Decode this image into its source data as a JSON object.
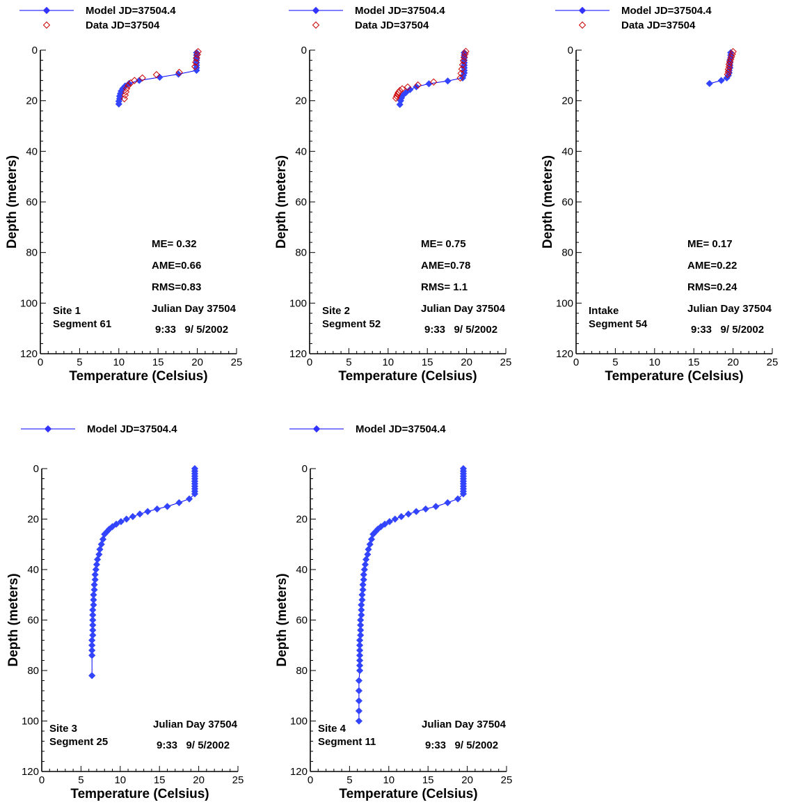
{
  "chart_data": [
    {
      "type": "scatter",
      "xlabel": "Temperature  (Celsius)",
      "ylabel": "Depth (meters)",
      "xlim": [
        0,
        25
      ],
      "ylim": [
        0,
        120
      ],
      "y_inverted": true,
      "x_ticks": [
        "0",
        "5",
        "10",
        "15",
        "20",
        "25"
      ],
      "y_ticks": [
        "0",
        "20",
        "40",
        "60",
        "80",
        "100",
        "120"
      ],
      "legend": "top-left",
      "site_label": [
        "Site 1",
        "Segment 61"
      ],
      "stats": [
        "ME= 0.32",
        "AME=0.66",
        "RMS=0.83"
      ],
      "date_label": [
        "Julian Day 37504",
        "9:33   9/ 5/2002"
      ],
      "series": [
        {
          "name": "Model JD=37504.4",
          "marker": "filled-diamond",
          "line": true,
          "color": "#0000cc",
          "x": [
            19.9,
            19.9,
            19.9,
            19.9,
            19.9,
            19.9,
            19.9,
            19.9,
            17.6,
            15.2,
            12.6,
            11.3,
            10.8,
            10.5,
            10.3,
            10.2,
            10.1,
            10.1,
            10.0,
            10.0
          ],
          "y": [
            1,
            2,
            3,
            4,
            5,
            6,
            7,
            8,
            9.5,
            10.7,
            12,
            13.2,
            14.2,
            15.2,
            16.2,
            17.2,
            18.2,
            19.2,
            20.2,
            21.3
          ]
        },
        {
          "name": "Data JD=37504",
          "marker": "open-diamond",
          "line": false,
          "color": "#cc0000",
          "x": [
            20.1,
            20.0,
            19.9,
            19.8,
            19.7,
            17.7,
            14.8,
            13.0,
            12.0,
            11.5,
            11.2,
            11.0,
            10.9,
            10.8,
            10.7
          ],
          "y": [
            0.6,
            1.8,
            3.2,
            4.8,
            6.5,
            8.8,
            9.7,
            11.0,
            12.0,
            13.0,
            14.0,
            15.2,
            16.5,
            17.8,
            19.2
          ]
        }
      ]
    },
    {
      "type": "scatter",
      "xlabel": "Temperature  (Celsius)",
      "ylabel": "Depth (meters)",
      "xlim": [
        0,
        25
      ],
      "ylim": [
        0,
        120
      ],
      "y_inverted": true,
      "x_ticks": [
        "0",
        "5",
        "10",
        "15",
        "20",
        "25"
      ],
      "y_ticks": [
        "0",
        "20",
        "40",
        "60",
        "80",
        "100",
        "120"
      ],
      "legend": "top-left",
      "site_label": [
        "Site 2",
        "Segment 52"
      ],
      "stats": [
        "ME= 0.75",
        "AME=0.78",
        "RMS= 1.1"
      ],
      "date_label": [
        "Julian Day 37504",
        "9:33   9/ 5/2002"
      ],
      "series": [
        {
          "name": "Model JD=37504.4",
          "marker": "filled-diamond",
          "line": true,
          "color": "#0000cc",
          "x": [
            19.7,
            19.7,
            19.7,
            19.7,
            19.7,
            19.7,
            19.7,
            19.7,
            19.7,
            19.6,
            19.5,
            17.6,
            15.2,
            13.6,
            12.8,
            12.3,
            11.9,
            11.7,
            11.6,
            11.5
          ],
          "y": [
            1,
            2,
            3,
            4,
            5,
            6,
            7,
            8,
            9,
            10,
            11,
            12.2,
            13.3,
            14.5,
            15.6,
            16.7,
            17.8,
            18.9,
            20,
            21.5
          ]
        },
        {
          "name": "Data JD=37504",
          "marker": "open-diamond",
          "line": false,
          "color": "#cc0000",
          "x": [
            19.9,
            19.8,
            19.7,
            19.6,
            19.5,
            19.4,
            19.3,
            19.2,
            15.8,
            13.8,
            12.5,
            11.8,
            11.5,
            11.3,
            11.2,
            11.1,
            11.0
          ],
          "y": [
            0.5,
            1.5,
            2.8,
            4.2,
            5.8,
            7.5,
            9.2,
            11.0,
            12.6,
            13.8,
            14.6,
            15.3,
            16.0,
            16.8,
            17.5,
            18.2,
            19.0
          ]
        }
      ]
    },
    {
      "type": "scatter",
      "xlabel": "Temperature  (Celsius)",
      "ylabel": "Depth (meters)",
      "xlim": [
        0,
        25
      ],
      "ylim": [
        0,
        120
      ],
      "y_inverted": true,
      "x_ticks": [
        "0",
        "5",
        "10",
        "15",
        "20",
        "25"
      ],
      "y_ticks": [
        "0",
        "20",
        "40",
        "60",
        "80",
        "100",
        "120"
      ],
      "legend": "top-left",
      "site_label": [
        "Intake",
        "Segment 54"
      ],
      "stats": [
        "ME= 0.17",
        "AME=0.22",
        "RMS=0.24"
      ],
      "date_label": [
        "Julian Day 37504",
        "9:33   9/ 5/2002"
      ],
      "series": [
        {
          "name": "Model JD=37504.4",
          "marker": "filled-diamond",
          "line": true,
          "color": "#0000cc",
          "x": [
            19.7,
            19.7,
            19.7,
            19.6,
            19.6,
            19.6,
            19.6,
            19.5,
            19.5,
            19.4,
            19.2,
            18.5,
            17.0
          ],
          "y": [
            1,
            2,
            3,
            4,
            5,
            6,
            7,
            8,
            9,
            10,
            11,
            12,
            13.2
          ]
        },
        {
          "name": "Data JD=37504",
          "marker": "open-diamond",
          "line": false,
          "color": "#cc0000",
          "x": [
            20.0,
            19.9,
            19.8,
            19.7,
            19.6,
            19.5,
            19.5,
            19.4,
            19.4,
            19.3
          ],
          "y": [
            0.6,
            1.6,
            2.6,
            3.6,
            4.6,
            5.6,
            6.6,
            7.6,
            8.6,
            9.6
          ]
        }
      ]
    },
    {
      "type": "line",
      "xlabel": "Temperature (Celsius)",
      "ylabel": "Depth (meters)",
      "xlim": [
        0,
        25
      ],
      "ylim": [
        0,
        120
      ],
      "y_inverted": true,
      "x_ticks": [
        "0",
        "5",
        "10",
        "15",
        "20",
        "25"
      ],
      "y_ticks": [
        "0",
        "20",
        "40",
        "60",
        "80",
        "100",
        "120"
      ],
      "legend": "top-left",
      "site_label": [
        "Site 3",
        "Segment 25"
      ],
      "stats": [],
      "date_label": [
        "Julian Day 37504",
        "9:33   9/ 5/2002"
      ],
      "series": [
        {
          "name": "Model JD=37504.4",
          "marker": "filled-diamond",
          "line": true,
          "color": "#0000cc",
          "x": [
            19.5,
            19.5,
            19.5,
            19.5,
            19.5,
            19.5,
            19.5,
            19.5,
            19.5,
            19.5,
            19.5,
            18.8,
            17.5,
            16.0,
            14.7,
            13.5,
            12.5,
            11.6,
            10.8,
            10.1,
            9.5,
            9.0,
            8.6,
            8.3,
            8.0,
            7.8,
            7.6,
            7.4,
            7.3,
            7.1,
            7.0,
            6.9,
            6.8,
            6.8,
            6.7,
            6.7,
            6.6,
            6.6,
            6.6,
            6.5,
            6.5,
            6.5,
            6.5,
            6.5,
            6.5,
            6.4,
            6.4,
            6.4,
            6.4,
            6.4
          ],
          "y": [
            0,
            1,
            2,
            3,
            4,
            5,
            6,
            7,
            8,
            9,
            10,
            12,
            13.5,
            15,
            16,
            17,
            18,
            19,
            20,
            21,
            22,
            23,
            24,
            25,
            26,
            28,
            30,
            32,
            34,
            36,
            38,
            40,
            42,
            44,
            46,
            48,
            50,
            52,
            54,
            56,
            58,
            60,
            62,
            64,
            66,
            68,
            70,
            72,
            74,
            82
          ]
        }
      ]
    },
    {
      "type": "line",
      "xlabel": "Temperature (Celsius)",
      "ylabel": "Depth (meters)",
      "xlim": [
        0,
        25
      ],
      "ylim": [
        0,
        120
      ],
      "y_inverted": true,
      "x_ticks": [
        "0",
        "5",
        "10",
        "15",
        "20",
        "25"
      ],
      "y_ticks": [
        "0",
        "20",
        "40",
        "60",
        "80",
        "100",
        "120"
      ],
      "legend": "top-left",
      "site_label": [
        "Site 4",
        "Segment 11"
      ],
      "stats": [],
      "date_label": [
        "Julian Day 37504",
        "9:33   9/ 5/2002"
      ],
      "series": [
        {
          "name": "Model JD=37504.4",
          "marker": "filled-diamond",
          "line": true,
          "color": "#0000cc",
          "x": [
            19.5,
            19.5,
            19.5,
            19.5,
            19.5,
            19.5,
            19.5,
            19.5,
            19.5,
            19.5,
            19.5,
            18.8,
            17.5,
            16.0,
            14.7,
            13.5,
            12.5,
            11.6,
            10.8,
            10.1,
            9.5,
            9.0,
            8.6,
            8.3,
            8.0,
            7.8,
            7.6,
            7.4,
            7.3,
            7.1,
            7.0,
            6.9,
            6.8,
            6.8,
            6.7,
            6.7,
            6.6,
            6.6,
            6.5,
            6.5,
            6.5,
            6.4,
            6.4,
            6.4,
            6.4,
            6.3,
            6.3,
            6.3,
            6.3,
            6.3,
            6.3,
            6.3,
            6.2,
            6.2,
            6.2,
            6.2,
            6.2
          ],
          "y": [
            0,
            1,
            2,
            3,
            4,
            5,
            6,
            7,
            8,
            9,
            10,
            12,
            13.5,
            15,
            16,
            17,
            18,
            19,
            20,
            21,
            22,
            23,
            24,
            25,
            26,
            28,
            30,
            32,
            34,
            36,
            38,
            40,
            42,
            44,
            46,
            48,
            50,
            52,
            54,
            56,
            58,
            60,
            62,
            64,
            66,
            68,
            70,
            72,
            74,
            76,
            78,
            80,
            84,
            88,
            92,
            96,
            100
          ]
        }
      ]
    }
  ]
}
